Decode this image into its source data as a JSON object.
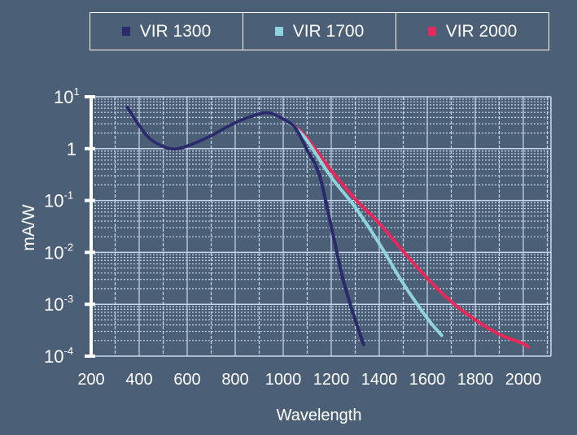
{
  "chart_data": {
    "type": "line",
    "title": "",
    "xlabel": "Wavelength",
    "ylabel": "mA/W",
    "xlim": [
      200,
      2115
    ],
    "ylim_log10": [
      -4,
      1
    ],
    "yscale": "log",
    "grid": true,
    "legend_placement": "top",
    "x_ticks": [
      "200",
      "400",
      "600",
      "800",
      "1000",
      "1200",
      "1400",
      "1600",
      "1800",
      "2000"
    ],
    "y_ticks": [
      {
        "base": "10",
        "exp": "1",
        "v": 1
      },
      {
        "base": "1",
        "exp": "",
        "v": 0
      },
      {
        "base": "10",
        "exp": "-1",
        "v": -1
      },
      {
        "base": "10",
        "exp": "-2",
        "v": -2
      },
      {
        "base": "10",
        "exp": "-3",
        "v": -3
      },
      {
        "base": "10",
        "exp": "-4",
        "v": -4
      }
    ],
    "series": [
      {
        "name": "VIR 1300",
        "color": "#2b2a6b",
        "x": [
          350,
          400,
          450,
          530,
          600,
          700,
          800,
          900,
          950,
          1000,
          1050,
          1100,
          1150,
          1200,
          1250,
          1300,
          1335
        ],
        "log10_y": [
          0.8,
          0.45,
          0.17,
          0.0,
          0.05,
          0.25,
          0.5,
          0.67,
          0.68,
          0.57,
          0.4,
          -0.03,
          -0.5,
          -1.5,
          -2.53,
          -3.3,
          -3.78
        ]
      },
      {
        "name": "VIR 1700",
        "color": "#8fd3dd",
        "x": [
          350,
          400,
          450,
          530,
          600,
          700,
          800,
          900,
          950,
          1000,
          1050,
          1100,
          1200,
          1300,
          1400,
          1500,
          1600,
          1660
        ],
        "log10_y": [
          0.8,
          0.45,
          0.17,
          0.0,
          0.05,
          0.25,
          0.5,
          0.67,
          0.68,
          0.57,
          0.4,
          0.15,
          -0.55,
          -1.13,
          -1.83,
          -2.6,
          -3.27,
          -3.6
        ]
      },
      {
        "name": "VIR 2000",
        "color": "#e8285a",
        "x": [
          350,
          400,
          450,
          530,
          600,
          700,
          800,
          900,
          950,
          1000,
          1050,
          1100,
          1200,
          1300,
          1400,
          1500,
          1600,
          1700,
          1800,
          1900,
          2000,
          2020
        ],
        "log10_y": [
          0.8,
          0.45,
          0.17,
          0.0,
          0.05,
          0.25,
          0.5,
          0.67,
          0.68,
          0.57,
          0.42,
          0.2,
          -0.42,
          -0.97,
          -1.44,
          -1.98,
          -2.5,
          -2.95,
          -3.3,
          -3.58,
          -3.76,
          -3.83
        ]
      }
    ]
  }
}
